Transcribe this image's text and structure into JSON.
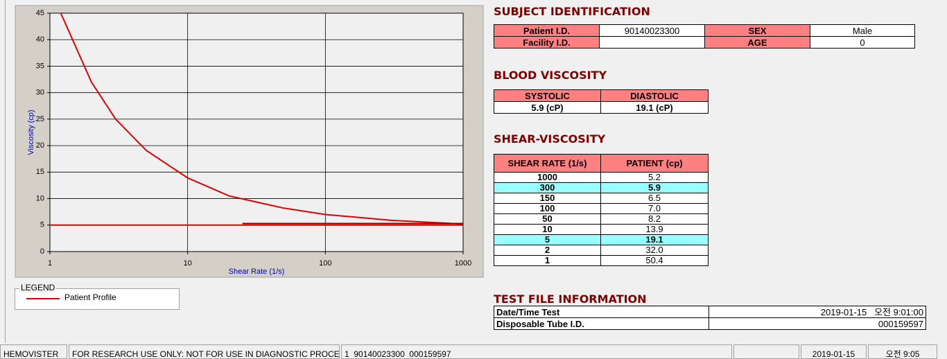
{
  "chart_data": {
    "type": "line",
    "xlabel": "Shear Rate (1/s)",
    "ylabel": "Viscosity (cp)",
    "xscale": "log",
    "grid": true,
    "xlim": [
      1,
      1000
    ],
    "xticks": [
      1,
      10,
      100,
      1000
    ],
    "ylim": [
      0,
      45
    ],
    "yticks": [
      0,
      5,
      10,
      15,
      20,
      25,
      30,
      35,
      40,
      45
    ],
    "series": [
      {
        "name": "Patient Profile",
        "color": "#e00000",
        "x": [
          1.2,
          2,
          3,
          5,
          10,
          20,
          50,
          100,
          300,
          1000
        ],
        "values": [
          45,
          32,
          25,
          19.1,
          13.9,
          10.5,
          8.2,
          7.0,
          5.9,
          5.2
        ]
      },
      {
        "color": "#e00000",
        "x": [
          1,
          1000
        ],
        "values": [
          5,
          5
        ]
      },
      {
        "color": "#900000",
        "x": [
          25,
          1000
        ],
        "values": [
          5.3,
          5.3
        ]
      }
    ]
  },
  "legend": {
    "title": "LEGEND"
  },
  "subject": {
    "title": "SUBJECT IDENTIFICATION",
    "patient_id": {
      "label": "Patient I.D.",
      "value": "90140023300"
    },
    "sex": {
      "label": "SEX",
      "value": "Male"
    },
    "facility_id": {
      "label": "Facility I.D."
    },
    "age": {
      "label": "AGE",
      "value": 0
    }
  },
  "blood": {
    "title": "BLOOD VISCOSITY",
    "headers": [
      "SYSTOLIC",
      "DIASTOLIC"
    ],
    "values": [
      "5.9 (cP)",
      "19.1 (cP)"
    ]
  },
  "shear": {
    "title": "SHEAR-VISCOSITY",
    "headers": [
      "SHEAR RATE (1/s)",
      "PATIENT (cp)"
    ],
    "rows": [
      {
        "rate": 1000,
        "value": "5.2"
      },
      {
        "rate": 300,
        "value": "5.9",
        "highlight": true
      },
      {
        "rate": 150,
        "value": "6.5"
      },
      {
        "rate": 100,
        "value": "7.0"
      },
      {
        "rate": 50,
        "value": "8.2"
      },
      {
        "rate": 10,
        "value": "13.9"
      },
      {
        "rate": 5,
        "value": "19.1",
        "highlight": true
      },
      {
        "rate": 2,
        "value": "32.0"
      },
      {
        "rate": 1,
        "value": "50.4"
      }
    ]
  },
  "test_file": {
    "title": "TEST FILE INFORMATION",
    "rows": [
      [
        "Date/Time Test",
        "2019-01-15   오전 9:01:00"
      ],
      [
        "Disposable Tube I.D.",
        "000159597"
      ]
    ]
  },
  "status_bar": [
    "HEMOVISTER",
    "FOR RESEARCH USE ONLY: NOT FOR USE IN DIAGNOSTIC PROCEDURES",
    "1  90140023300  000159597",
    "2019-01-15",
    "오전 9:05"
  ]
}
